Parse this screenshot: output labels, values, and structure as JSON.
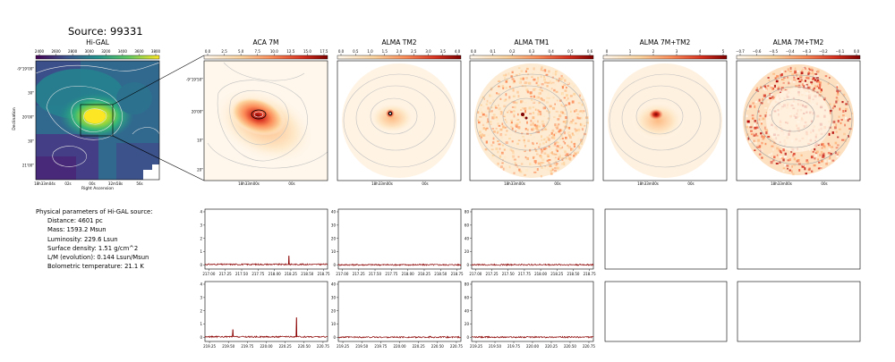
{
  "source_title": "Source: 99331",
  "panels": {
    "higal": {
      "title": "Hi-GAL",
      "cbar_ticks": [
        "2400",
        "2600",
        "2800",
        "3000",
        "3200",
        "3400",
        "3600",
        "3800"
      ],
      "ylabel": "Declination",
      "xlabel": "Right Ascension",
      "yticks": [
        "-9°19'00\"",
        "30\"",
        "20'00\"",
        "30\"",
        "21'00\""
      ],
      "xticks": [
        "18h33m04s",
        "02s",
        "00s",
        "32m58s",
        "56s"
      ]
    },
    "aca7m": {
      "title": "ACA 7M",
      "cbar_ticks": [
        "0.0",
        "2.5",
        "5.0",
        "7.5",
        "10.0",
        "12.5",
        "15.0",
        "17.5"
      ],
      "yticks": [
        "-9°19'50\"",
        "20'00\"",
        "10\"",
        "20\""
      ],
      "xticks": [
        "18h33m00s",
        "00s"
      ]
    },
    "tm2": {
      "title": "ALMA TM2",
      "cbar_ticks": [
        "0.0",
        "0.5",
        "1.0",
        "1.5",
        "2.0",
        "2.5",
        "3.0",
        "3.5",
        "4.0"
      ],
      "xticks": [
        "18h33m00s",
        "00s"
      ]
    },
    "tm1": {
      "title": "ALMA TM1",
      "cbar_ticks": [
        "0.0",
        "0.1",
        "0.2",
        "0.3",
        "0.4",
        "0.5",
        "0.6"
      ],
      "xticks": [
        "18h33m00s",
        "00s"
      ]
    },
    "m7tm2": {
      "title": "ALMA 7M+TM2",
      "cbar_ticks": [
        "0",
        "1",
        "2",
        "3",
        "4",
        "5"
      ],
      "xticks": [
        "18h33m00s",
        "00s"
      ]
    },
    "m7tm2b": {
      "title": "ALMA 7M+TM2",
      "cbar_ticks": [
        "−0.7",
        "−0.6",
        "−0.5",
        "−0.4",
        "−0.3",
        "−0.2",
        "−0.1",
        "0.0"
      ],
      "xticks": [
        "18h33m00s",
        "00s"
      ]
    }
  },
  "params": {
    "heading": "Physical parameters of Hi-GAL source:",
    "lines": [
      "Distance: 4601 pc",
      "Mass: 1593.2 Msun",
      "Luminosity: 229.6 Lsun",
      "Surface density: 1.51 g/cm^2",
      "L/M (evolution): 0.144 Lsun/Msun",
      "Bolometric temperature: 21.1 K"
    ]
  },
  "spectra_row1_xticks": [
    "217.00",
    "217.25",
    "217.50",
    "217.75",
    "218.00",
    "218.25",
    "218.50",
    "218.75"
  ],
  "spectra_row2_xticks": [
    "219.25",
    "219.50",
    "219.75",
    "220.00",
    "220.25",
    "220.50",
    "220.75"
  ],
  "chart_data": [
    {
      "type": "line",
      "panel": "ACA 7M spectrum, row 1",
      "x_ticks": [
        217.0,
        217.25,
        217.5,
        217.75,
        218.0,
        218.25,
        218.5,
        218.75
      ],
      "y_ticks": [
        0,
        1,
        2,
        3,
        4
      ],
      "ylim": [
        -0.3,
        4.2
      ],
      "baseline": 0.05,
      "peaks": [
        {
          "x": 218.22,
          "y": 0.7
        }
      ],
      "color": "#8b0000"
    },
    {
      "type": "line",
      "panel": "ALMA TM2 spectrum, row 1",
      "x_ticks": [
        217.0,
        217.25,
        217.5,
        217.75,
        218.0,
        218.25,
        218.5,
        218.75
      ],
      "y_ticks": [
        0,
        10,
        20,
        30,
        40
      ],
      "ylim": [
        -3,
        42
      ],
      "baseline": 0.2,
      "peaks": [],
      "color": "#8b0000"
    },
    {
      "type": "line",
      "panel": "ALMA TM1 spectrum, row 1",
      "x_ticks": [
        217.0,
        217.25,
        217.5,
        217.75,
        218.0,
        218.25,
        218.5,
        218.75
      ],
      "y_ticks": [
        0,
        20,
        40,
        60,
        80
      ],
      "ylim": [
        -6,
        84
      ],
      "baseline": 0.5,
      "peaks": [],
      "color": "#8b0000"
    },
    {
      "type": "line",
      "panel": "ACA 7M spectrum, row 2",
      "x_ticks": [
        219.25,
        219.5,
        219.75,
        220.0,
        220.25,
        220.5,
        220.75
      ],
      "y_ticks": [
        0,
        1,
        2,
        3,
        4
      ],
      "ylim": [
        -0.3,
        4.2
      ],
      "baseline": 0.05,
      "peaks": [
        {
          "x": 219.56,
          "y": 0.6
        },
        {
          "x": 220.4,
          "y": 1.5
        }
      ],
      "color": "#8b0000"
    },
    {
      "type": "line",
      "panel": "ALMA TM2 spectrum, row 2",
      "x_ticks": [
        219.25,
        219.5,
        219.75,
        220.0,
        220.25,
        220.5,
        220.75
      ],
      "y_ticks": [
        0,
        10,
        20,
        30,
        40
      ],
      "ylim": [
        -3,
        42
      ],
      "baseline": 0.2,
      "peaks": [
        {
          "x": 220.4,
          "y": 1.0
        }
      ],
      "color": "#8b0000"
    },
    {
      "type": "line",
      "panel": "ALMA TM1 spectrum, row 2",
      "x_ticks": [
        219.25,
        219.5,
        219.75,
        220.0,
        220.25,
        220.5,
        220.75
      ],
      "y_ticks": [
        0,
        20,
        40,
        60,
        80
      ],
      "ylim": [
        -6,
        84
      ],
      "baseline": 0.5,
      "peaks": [],
      "color": "#8b0000"
    }
  ]
}
